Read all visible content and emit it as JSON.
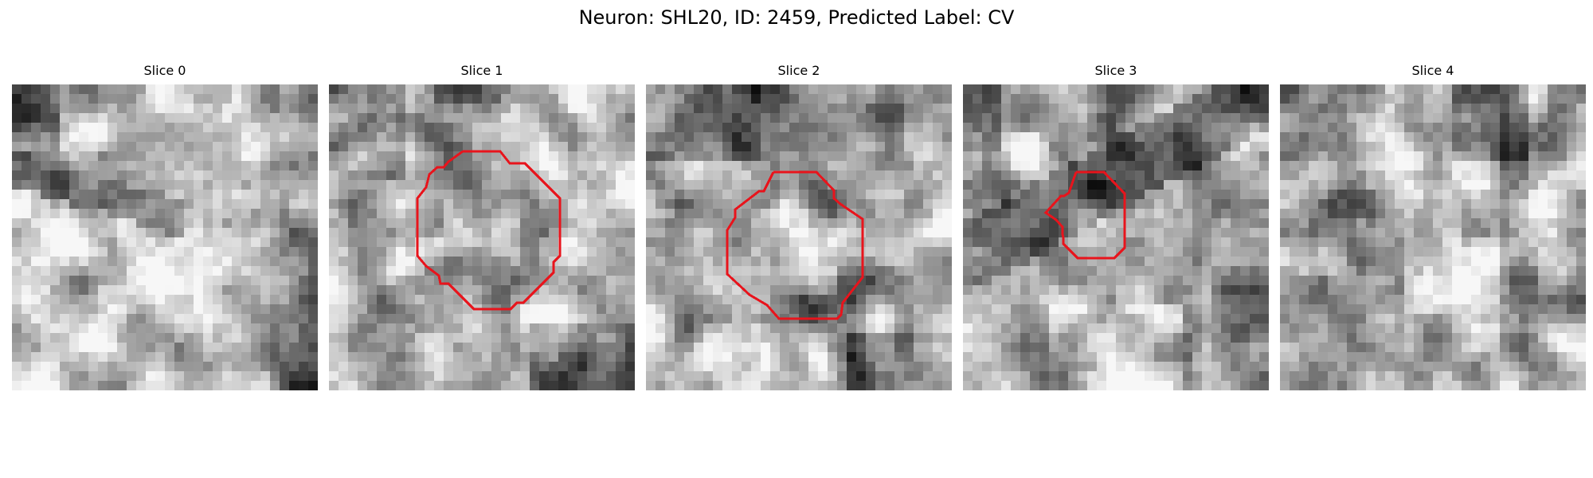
{
  "suptitle": "Neuron: SHL20, ID: 2459, Predicted Label: CV",
  "slices": [
    {
      "title": "Slice 0",
      "has_contour": false
    },
    {
      "title": "Slice 1",
      "has_contour": true
    },
    {
      "title": "Slice 2",
      "has_contour": true
    },
    {
      "title": "Slice 3",
      "has_contour": true
    },
    {
      "title": "Slice 4",
      "has_contour": false
    }
  ],
  "colors": {
    "contour": "#e8141c",
    "background": "#ffffff"
  },
  "colormap": "gray"
}
